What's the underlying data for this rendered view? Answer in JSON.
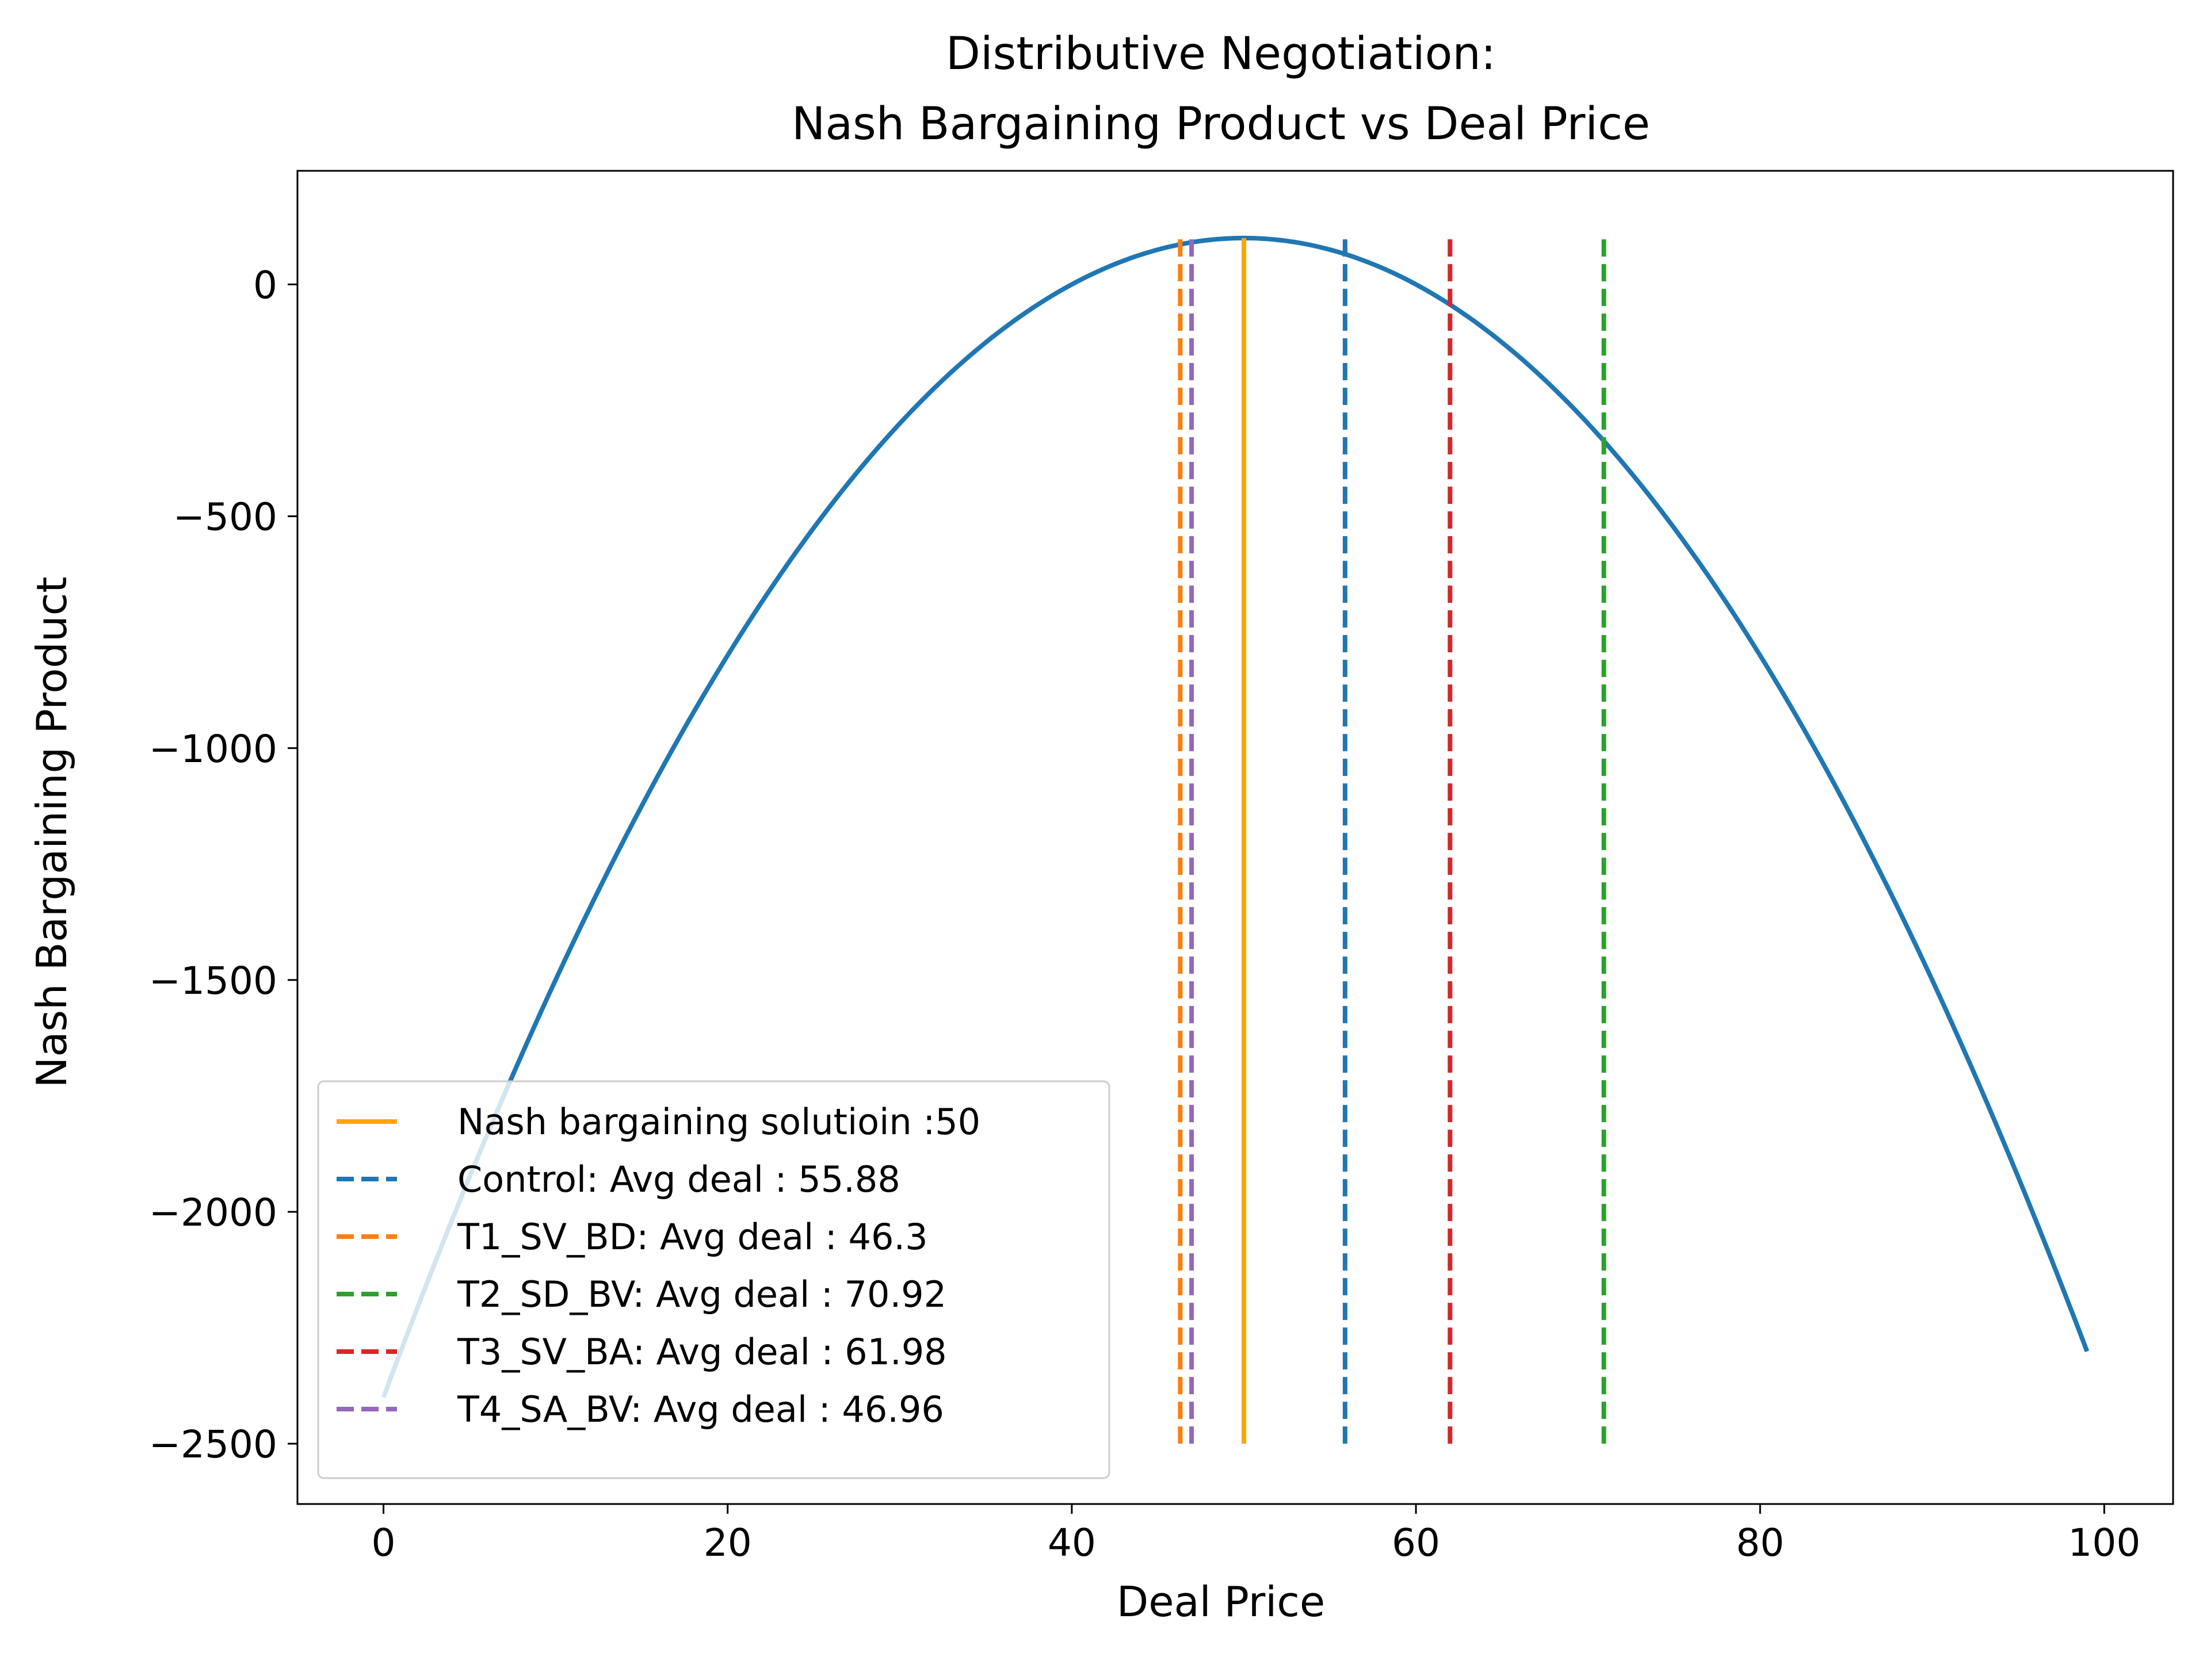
{
  "chart_data": {
    "type": "line",
    "title_line1": "Distributive Negotiation:",
    "title_line2": "Nash Bargaining Product vs Deal Price",
    "xlabel": "Deal Price",
    "ylabel": "Nash Bargaining Product",
    "xlim": [
      -5,
      104
    ],
    "ylim": [
      -2630,
      245
    ],
    "x_ticks": [
      0,
      20,
      40,
      60,
      80,
      100
    ],
    "x_tick_labels": [
      "0",
      "20",
      "40",
      "60",
      "80",
      "100"
    ],
    "y_ticks": [
      0,
      -500,
      -1000,
      -1500,
      -2000,
      -2500
    ],
    "y_tick_labels": [
      "0",
      "−500",
      "−1000",
      "−1500",
      "−2000",
      "−2500"
    ],
    "grid": false,
    "legend_position": "lower left",
    "curve": {
      "x_start": 0,
      "x_end": 99,
      "peak_x": 50,
      "peak_y": 100,
      "curvature": -1,
      "color": "#1f77b4"
    },
    "vlines": [
      {
        "label": "Nash bargaining solutioin :50",
        "x": 50,
        "ymin": -2500,
        "ymax": 100,
        "style": "solid",
        "color": "#ffa500"
      },
      {
        "label": "Control: Avg deal : 55.88",
        "x": 55.88,
        "ymin": -2500,
        "ymax": 110,
        "style": "dashed",
        "color": "#1f77b4"
      },
      {
        "label": "T1_SV_BD: Avg deal : 46.3",
        "x": 46.3,
        "ymin": -2500,
        "ymax": 110,
        "style": "dashed",
        "color": "#ff7f0e"
      },
      {
        "label": "T2_SD_BV: Avg deal : 70.92",
        "x": 70.92,
        "ymin": -2500,
        "ymax": 110,
        "style": "dashed",
        "color": "#2ca02c"
      },
      {
        "label": "T3_SV_BA: Avg deal : 61.98",
        "x": 61.98,
        "ymin": -2500,
        "ymax": 110,
        "style": "dashed",
        "color": "#d62728"
      },
      {
        "label": "T4_SA_BV: Avg deal : 46.96",
        "x": 46.96,
        "ymin": -2500,
        "ymax": 110,
        "style": "dashed",
        "color": "#9467bd"
      }
    ]
  }
}
